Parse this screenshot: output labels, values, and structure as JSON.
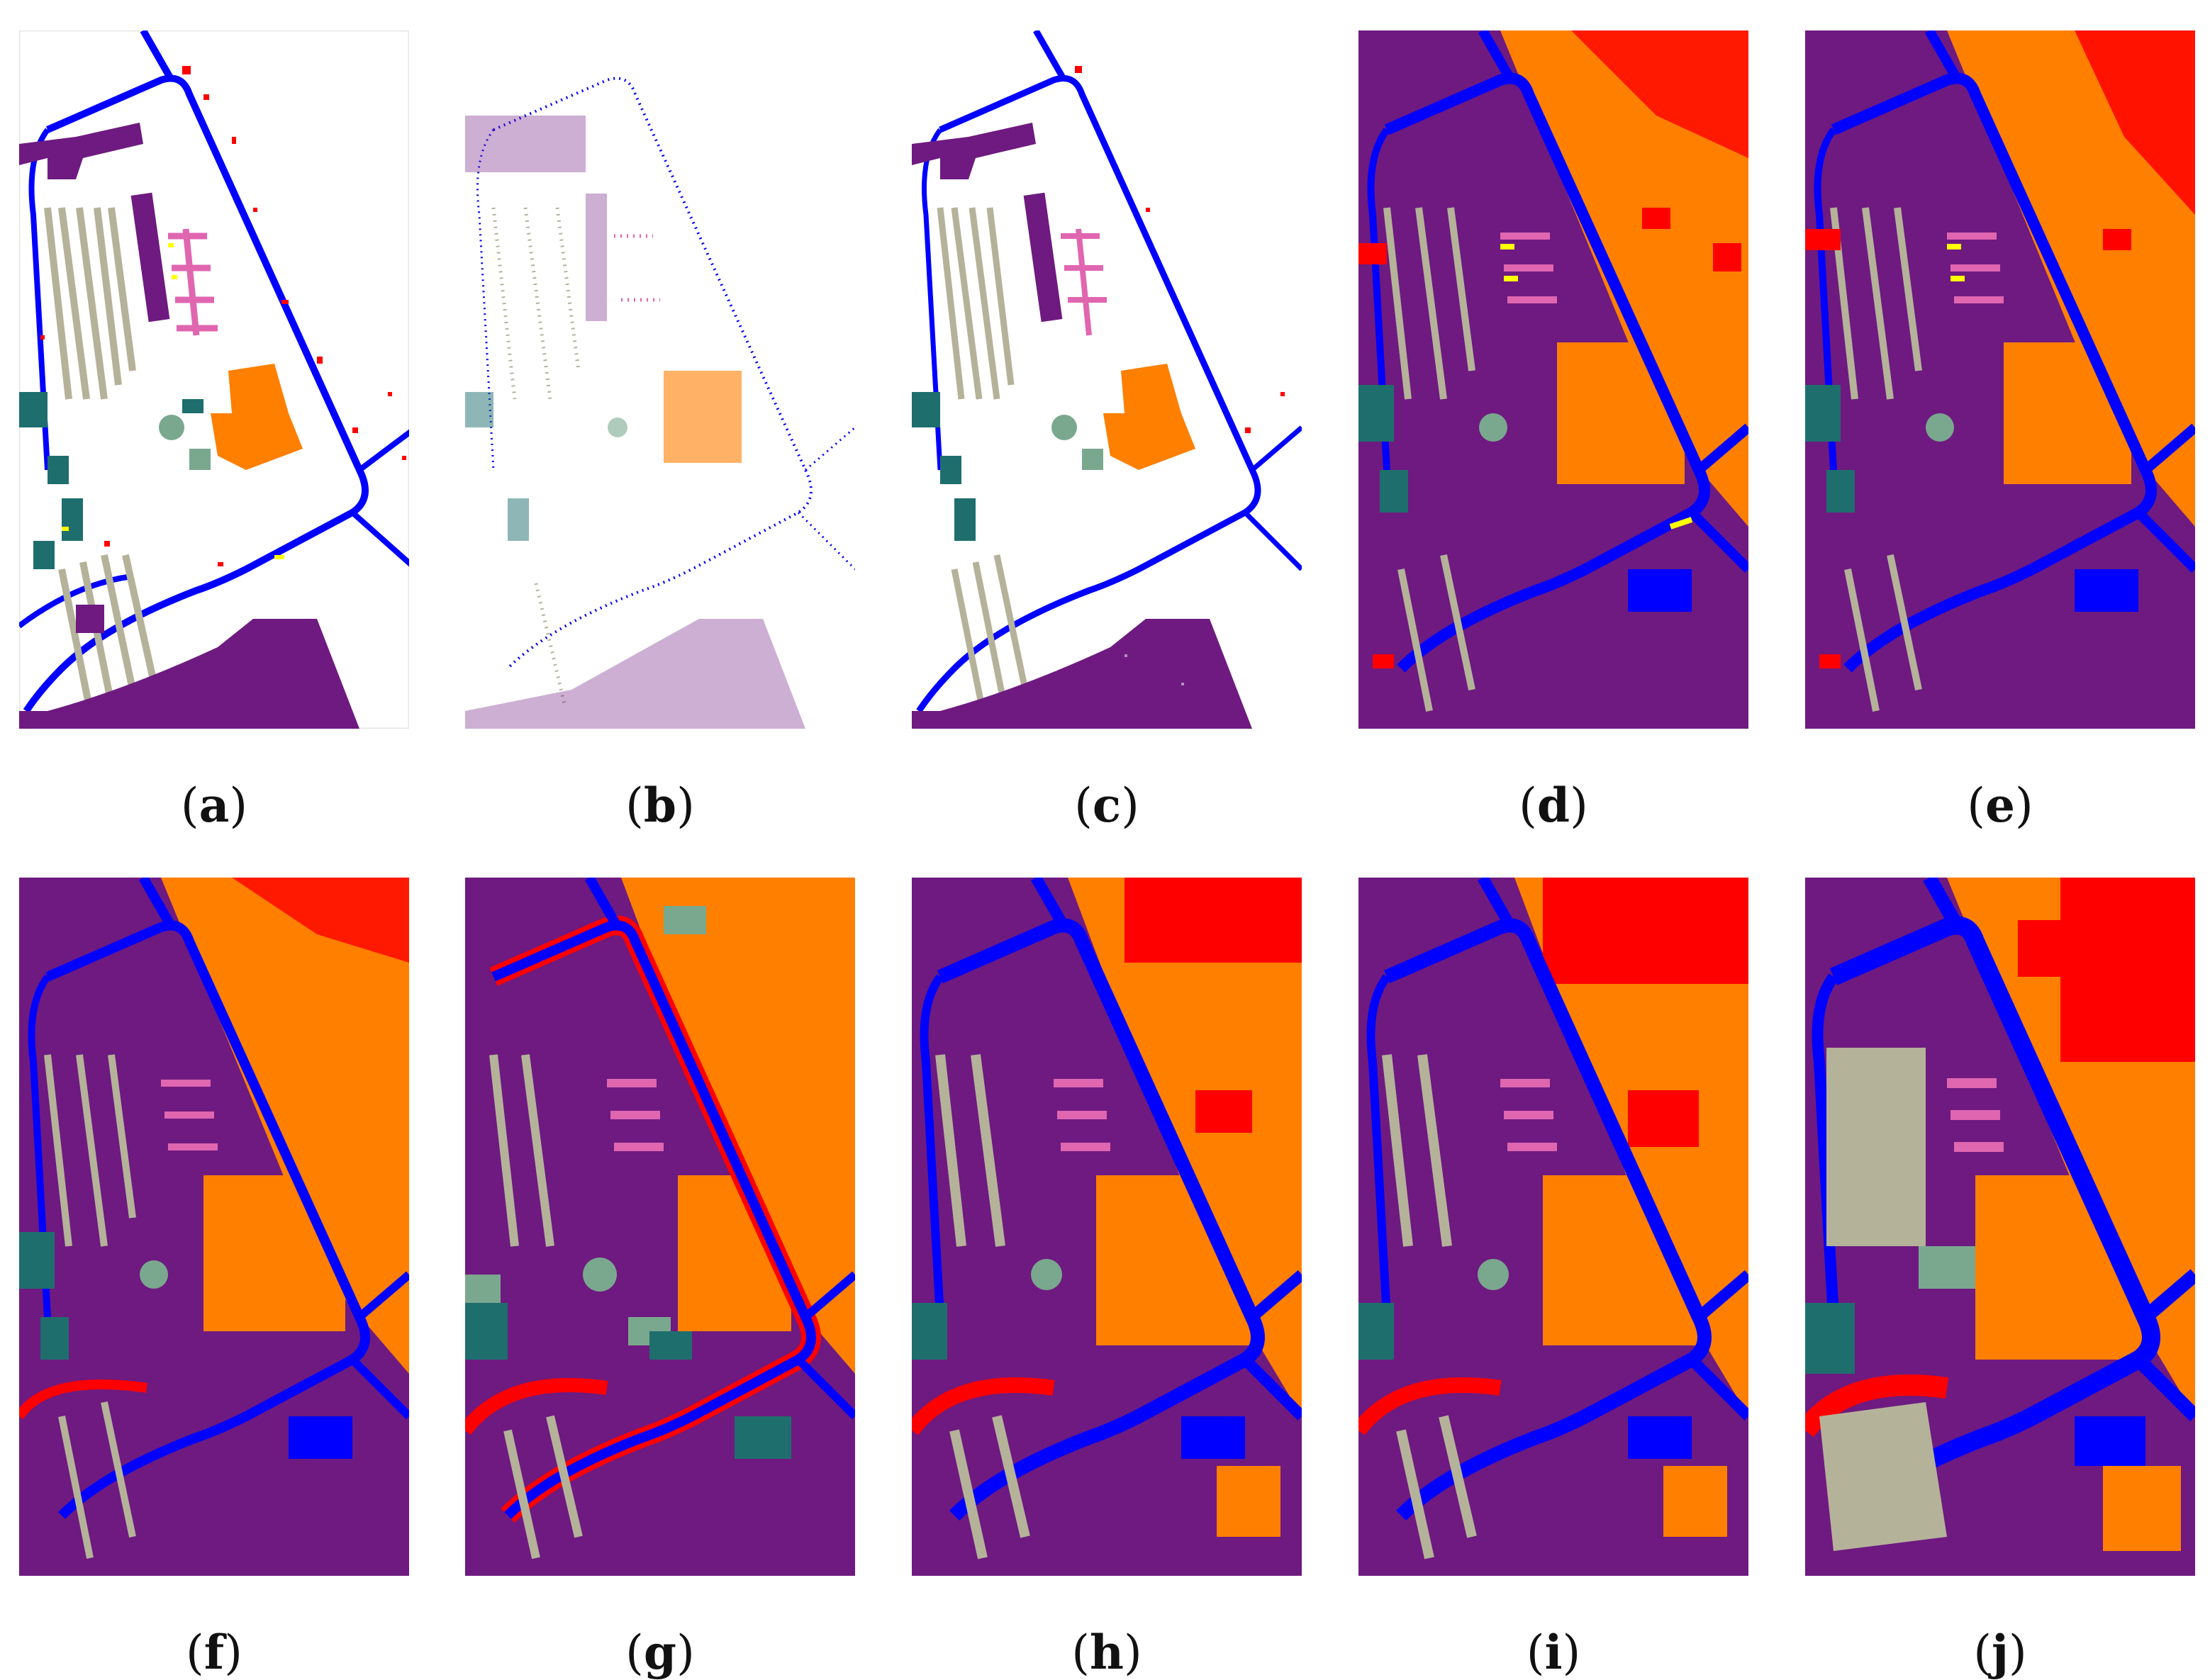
{
  "panels": [
    {
      "label": "a",
      "style": "ground-truth"
    },
    {
      "label": "b",
      "style": "sparse-samples"
    },
    {
      "label": "c",
      "style": "dense-samples"
    },
    {
      "label": "d",
      "style": "noisy-classification"
    },
    {
      "label": "e",
      "style": "noisy-classification"
    },
    {
      "label": "f",
      "style": "noisy-classification"
    },
    {
      "label": "g",
      "style": "smoothed-classification"
    },
    {
      "label": "h",
      "style": "smoothed-classification"
    },
    {
      "label": "i",
      "style": "smoothed-classification"
    },
    {
      "label": "j",
      "style": "very-smooth-classification"
    }
  ],
  "class_colors": {
    "background": "#6e1a80",
    "road": "#0000ff",
    "bare": "#ff0000",
    "meadow": "#ff7f00",
    "building": "#b5b29a",
    "tree": "#1f6e6e",
    "shadow": "#ffff00",
    "pink": "#e066b0",
    "gravel": "#7aa88e",
    "white": "#ffffff"
  }
}
